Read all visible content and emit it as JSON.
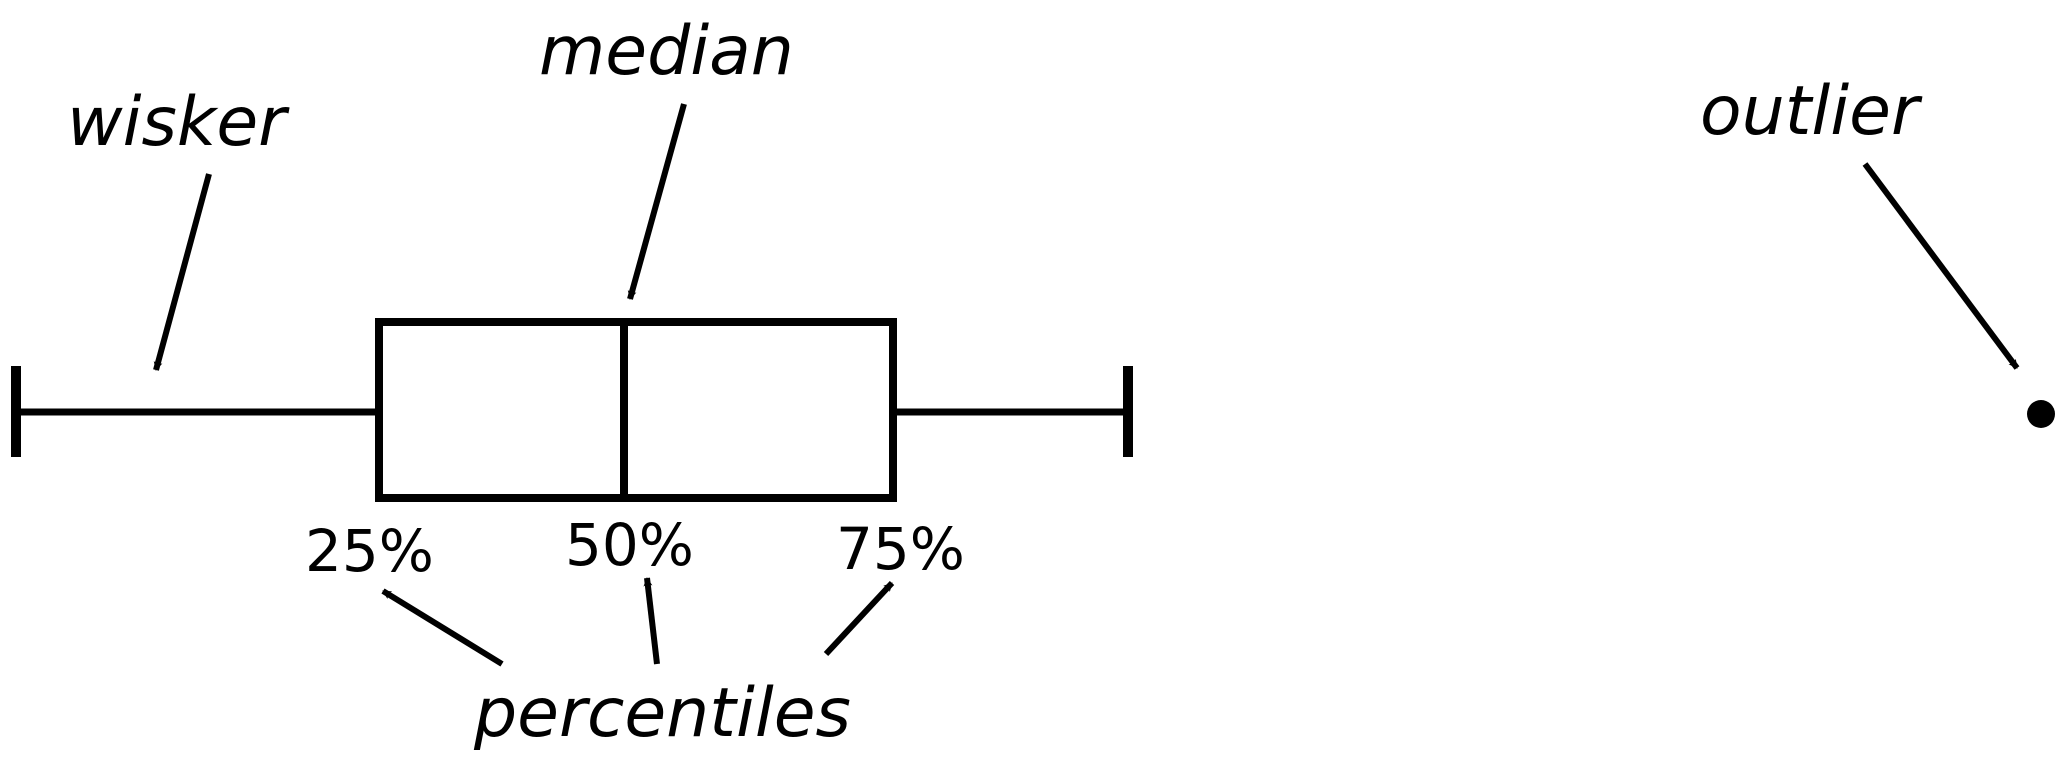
{
  "labels": {
    "wisker": "wisker",
    "median": "median",
    "outlier": "outlier",
    "percentiles": "percentiles"
  },
  "percentile_labels": {
    "p25": "25%",
    "p50": "50%",
    "p75": "75%"
  },
  "colors": {
    "ink": "#000000",
    "background": "#ffffff"
  }
}
